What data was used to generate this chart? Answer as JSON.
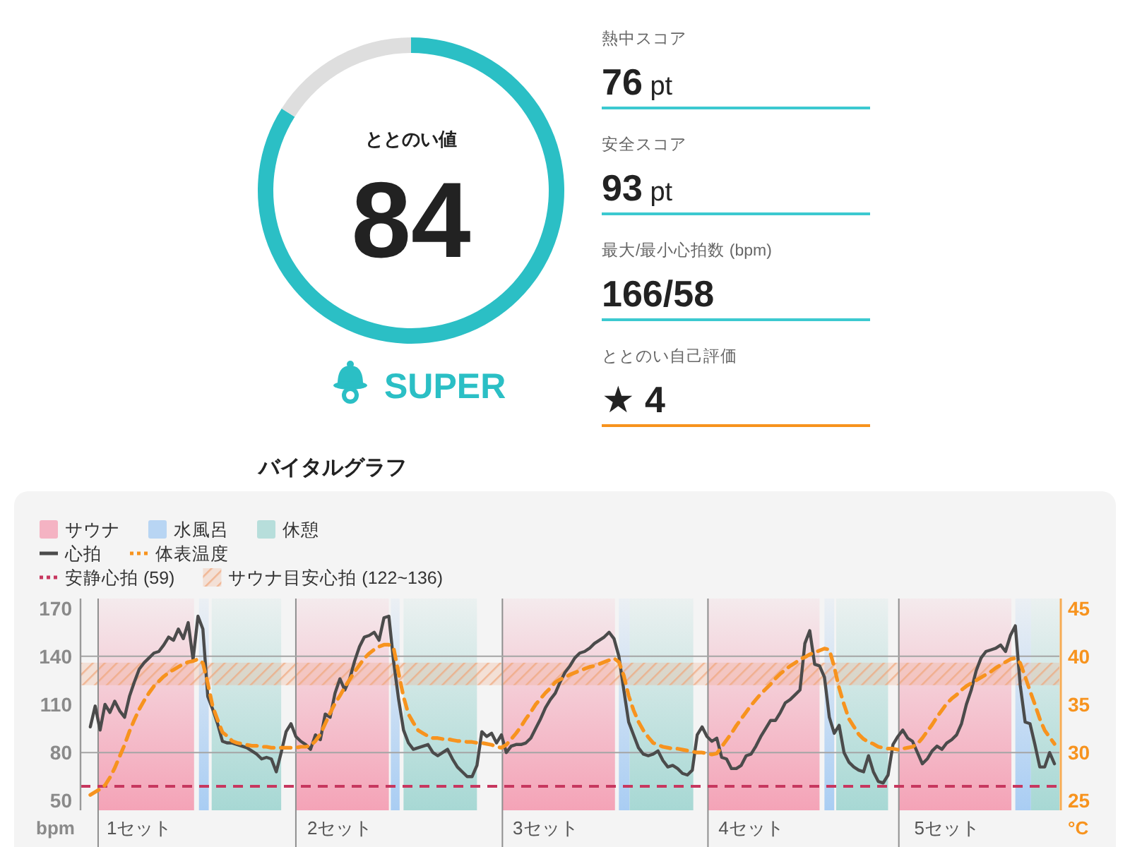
{
  "chart_data": [
    {
      "type": "donut",
      "title": "ととのい値",
      "categories": [
        null,
        null
      ],
      "values": [
        84,
        16
      ],
      "colors": [
        "#2bbfc5",
        "#dedede"
      ],
      "value_labels": [
        "84",
        null
      ],
      "annotations": [
        "SUPER"
      ]
    },
    {
      "type": "other",
      "annotations": [
        "熱中スコア",
        "76 pt",
        "安全スコア",
        "93 pt",
        "最大/最小心拍数 (bpm)",
        "166/58",
        "ととのい自己評価",
        "★ 4"
      ],
      "colors": [
        "#3cc9d0",
        "#3cc9d0",
        "#3cc9d0",
        "#f7931e"
      ]
    },
    {
      "type": "line",
      "title": "バイタルグラフ",
      "ylabel": "bpm",
      "y2label": "°C",
      "legend": "top left",
      "annotations": [
        "サウナ",
        "水風呂",
        "休憩"
      ],
      "colors": [
        "#f4a3b7",
        "#a9cdf3",
        "#a7d8d4"
      ],
      "categories": [
        null,
        null,
        null,
        null,
        null,
        null,
        null,
        null,
        null,
        null,
        null,
        null,
        "1セット",
        null,
        null,
        null,
        null,
        null,
        null,
        null,
        null,
        null,
        null,
        null,
        null,
        null,
        null,
        null,
        null,
        null,
        null,
        null,
        null,
        null,
        null,
        null,
        null,
        null,
        null,
        null,
        null,
        null,
        null,
        null,
        null,
        null,
        null,
        null,
        null,
        null,
        null,
        null,
        null,
        "2セット",
        null,
        null,
        null,
        null,
        null,
        null,
        null,
        null,
        null,
        null,
        null,
        null,
        null,
        null,
        null,
        null,
        null,
        null,
        null,
        null,
        null,
        null,
        null,
        null,
        null,
        null,
        null,
        null,
        null,
        null,
        null,
        null,
        null,
        null,
        null,
        null,
        null,
        null,
        null,
        null,
        null,
        "3セット",
        null,
        null,
        null,
        null,
        null,
        null,
        null,
        null,
        null,
        null,
        null,
        null,
        null,
        null,
        null,
        null,
        null,
        null,
        null,
        null,
        null,
        null,
        null,
        null,
        null,
        null,
        null,
        null,
        null,
        null,
        null,
        null,
        null,
        null,
        null,
        null,
        null,
        null,
        null,
        null,
        null,
        "4セット",
        null,
        null,
        null,
        null,
        null,
        null,
        null,
        null,
        null,
        null,
        null,
        null,
        null,
        null,
        null,
        null,
        null,
        null,
        null,
        null,
        null,
        null,
        null,
        null,
        null,
        null,
        null,
        null,
        null,
        null,
        null,
        null,
        null,
        null,
        null,
        null,
        null,
        null,
        null,
        "5セット",
        null,
        null,
        null,
        null,
        null,
        null,
        null,
        null,
        null,
        null,
        null,
        null,
        null,
        null,
        null,
        null,
        null,
        null,
        null,
        null,
        null,
        null,
        null
      ],
      "ylim": [
        44,
        176
      ],
      "yticks": [
        50,
        80,
        110,
        140,
        170
      ],
      "y2lim": [
        24,
        46
      ],
      "y2ticks": [
        25,
        30,
        35,
        40,
        45
      ],
      "bands": [
        {
          "axis": "y",
          "from": 122,
          "to": 136,
          "label": "サウナ目安心拍 (122~136)",
          "color": "#f0a57a"
        }
      ],
      "ref_lines": [
        {
          "axis": "y",
          "value": 80,
          "color": "#a5a5a5"
        },
        {
          "axis": "y",
          "value": 140,
          "color": "#a5a5a5"
        },
        {
          "axis": "y",
          "value": 59,
          "label": "安静心拍 (59)",
          "color": "#c7375f",
          "line_style": "dashed"
        }
      ],
      "series": [
        {
          "name": "心拍",
          "color": "#4b4b4b",
          "line_style": "solid",
          "values": [
            null,
            null,
            96,
            109,
            94,
            110,
            105,
            112,
            106,
            102,
            115,
            124,
            132,
            136,
            139,
            142,
            143,
            147,
            152,
            150,
            157,
            151,
            161,
            138,
            165,
            157,
            115,
            107,
            98,
            87,
            86,
            86,
            85,
            84,
            83,
            81,
            79,
            76,
            77,
            76,
            68,
            80,
            93,
            98,
            90,
            87,
            85,
            82,
            91,
            88,
            104,
            102,
            117,
            126,
            119,
            126,
            137,
            146,
            152,
            153,
            155,
            150,
            164,
            165,
            136,
            113,
            94,
            86,
            82,
            83,
            84,
            85,
            80,
            78,
            80,
            82,
            76,
            71,
            68,
            65,
            65,
            72,
            93,
            90,
            92,
            86,
            91,
            80,
            84,
            85,
            85,
            86,
            89,
            95,
            101,
            108,
            113,
            117,
            124,
            130,
            134,
            139,
            142,
            143,
            145,
            148,
            150,
            152,
            155,
            151,
            140,
            119,
            99,
            91,
            83,
            79,
            78,
            79,
            81,
            75,
            71,
            72,
            70,
            67,
            66,
            69,
            91,
            96,
            90,
            87,
            89,
            77,
            76,
            70,
            70,
            72,
            78,
            79,
            84,
            90,
            95,
            100,
            100,
            105,
            111,
            113,
            116,
            119,
            148,
            156,
            135,
            134,
            127,
            102,
            92,
            97,
            80,
            74,
            71,
            69,
            68,
            78,
            68,
            62,
            61,
            66,
            85,
            90,
            94,
            89,
            87,
            80,
            73,
            76,
            81,
            84,
            82,
            86,
            88,
            91,
            98,
            110,
            119,
            131,
            139,
            143,
            144,
            145,
            147,
            143,
            153,
            159,
            122,
            99,
            98,
            85,
            71,
            71,
            80,
            73,
            null
          ]
        },
        {
          "name": "体表温度",
          "color": "#f7931e",
          "axis": "y2",
          "line_style": "dashed",
          "values": [
            null,
            null,
            25.6,
            25.9,
            26.2,
            26.6,
            27.4,
            28.4,
            29.6,
            30.8,
            32.2,
            33.4,
            34.5,
            35.4,
            36.2,
            36.9,
            37.4,
            37.9,
            38.3,
            38.6,
            38.9,
            39.2,
            39.4,
            39.5,
            39.7,
            39.3,
            37.2,
            34.8,
            33.4,
            32.1,
            31.7,
            31.2,
            31.0,
            30.9,
            30.8,
            30.7,
            30.7,
            30.6,
            30.6,
            30.5,
            30.5,
            30.5,
            30.5,
            30.5,
            30.5,
            30.6,
            30.6,
            30.7,
            31.2,
            31.9,
            33.0,
            34.1,
            35.1,
            35.9,
            36.8,
            37.6,
            38.4,
            39.1,
            39.8,
            40.3,
            40.7,
            41.0,
            41.2,
            41.2,
            40.8,
            38.2,
            35.8,
            34.0,
            33.1,
            32.3,
            32.0,
            31.7,
            31.5,
            31.5,
            31.4,
            31.4,
            31.3,
            31.2,
            31.2,
            31.1,
            31.1,
            31.0,
            31.0,
            30.9,
            30.8,
            30.6,
            30.5,
            30.8,
            31.4,
            32.0,
            32.7,
            33.5,
            34.2,
            35.0,
            35.6,
            36.2,
            36.7,
            37.3,
            37.6,
            37.8,
            38.1,
            38.3,
            38.5,
            38.7,
            38.9,
            39.0,
            39.2,
            39.4,
            39.6,
            39.8,
            39.4,
            38.0,
            35.9,
            34.4,
            33.2,
            32.3,
            31.6,
            31.0,
            30.8,
            30.6,
            30.5,
            30.4,
            30.4,
            30.3,
            30.2,
            30.1,
            30.0,
            30.0,
            29.9,
            29.8,
            29.9,
            30.6,
            31.3,
            32.0,
            32.8,
            33.5,
            34.2,
            34.9,
            35.5,
            36.1,
            36.6,
            37.1,
            37.7,
            38.2,
            38.6,
            39.0,
            39.3,
            39.7,
            39.9,
            40.2,
            40.4,
            40.6,
            40.8,
            40.7,
            38.9,
            36.7,
            35.0,
            33.5,
            32.7,
            31.9,
            31.4,
            31.1,
            30.9,
            30.6,
            30.5,
            30.4,
            30.4,
            30.3,
            30.4,
            30.5,
            30.6,
            30.9,
            31.5,
            32.2,
            32.9,
            33.7,
            34.4,
            35.1,
            35.6,
            36.0,
            36.5,
            36.9,
            37.2,
            37.5,
            37.8,
            38.1,
            38.4,
            38.8,
            39.1,
            39.4,
            39.7,
            39.8,
            39.3,
            37.9,
            36.4,
            35.0,
            33.5,
            32.3,
            31.6,
            30.9,
            null
          ]
        }
      ]
    }
  ]
}
